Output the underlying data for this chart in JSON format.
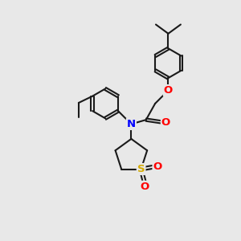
{
  "background_color": "#e8e8e8",
  "bond_color": "#1a1a1a",
  "bond_width": 1.5,
  "dbo": 0.055,
  "atom_colors": {
    "N": "#0000ff",
    "O": "#ff0000",
    "S": "#d4aa00",
    "C": "#1a1a1a"
  },
  "afs": 8.5,
  "figsize": [
    3.0,
    3.0
  ],
  "dpi": 100,
  "xlim": [
    0,
    10
  ],
  "ylim": [
    0,
    10
  ]
}
